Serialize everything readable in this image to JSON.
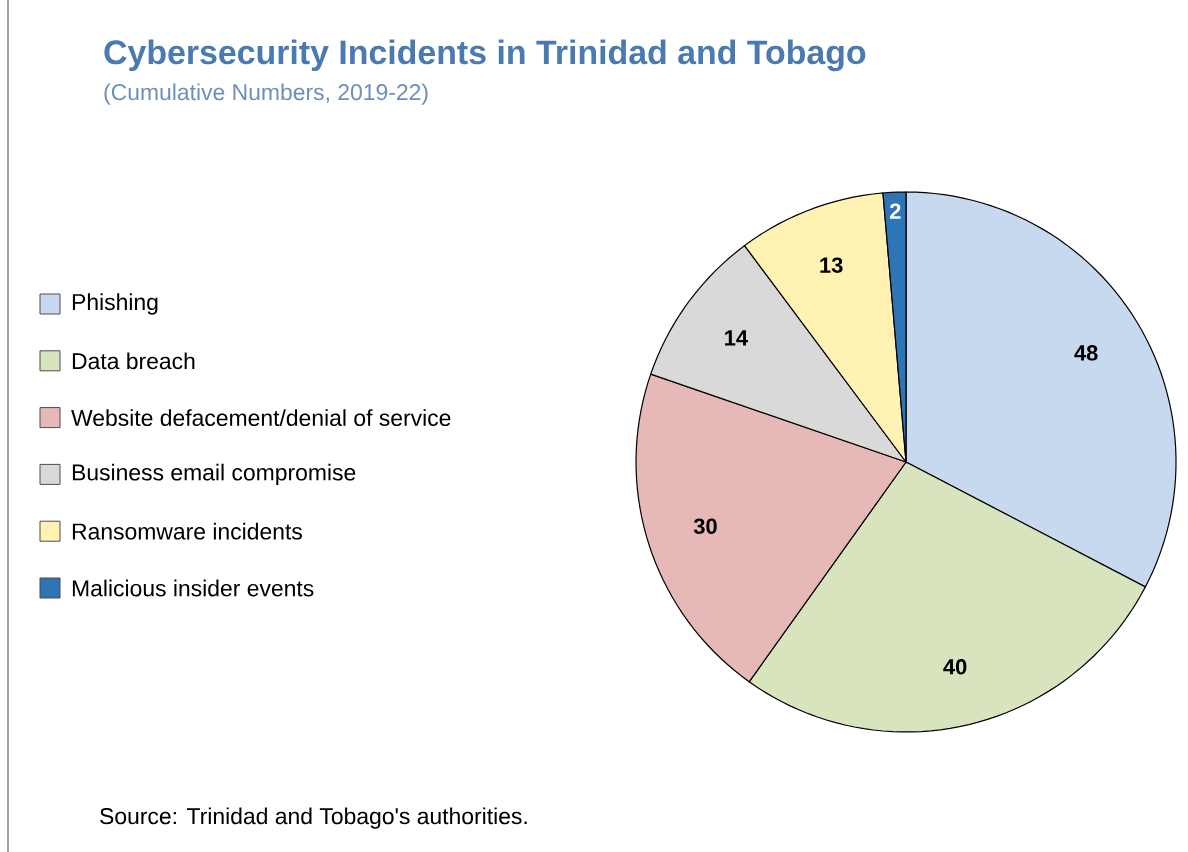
{
  "chart_data": {
    "type": "pie",
    "title": "Cybersecurity Incidents in Trinidad and Tobago",
    "subtitle": "(Cumulative Numbers, 2019-22)",
    "categories": [
      "Phishing",
      "Data breach",
      "Website defacement/denial of service",
      "Business email compromise",
      "Ransomware incidents",
      "Malicious insider events"
    ],
    "values": [
      48,
      40,
      30,
      14,
      13,
      2
    ],
    "colors": [
      "#c6d9ee",
      "#d7e4bd",
      "#e6b9b8",
      "#d9d9d9",
      "#fff2b3",
      "#2e75b6"
    ],
    "legend": "left",
    "data_labels": true,
    "annotations": [
      "Source: Trinidad and Tobago's authorities."
    ]
  }
}
